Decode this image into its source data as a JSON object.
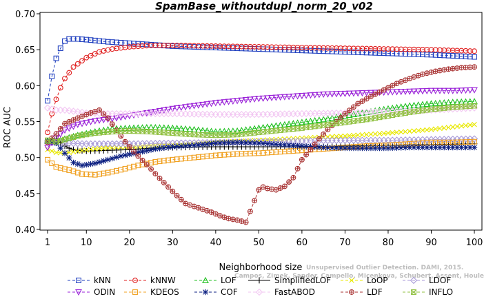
{
  "chart_data": {
    "type": "line",
    "title": "SpamBase_withoutdupl_norm_20_v02",
    "xlabel": "Neighborhood size",
    "ylabel": "ROC AUC",
    "xlim": [
      1,
      100
    ],
    "ylim": [
      0.4,
      0.7
    ],
    "xticks": [
      1,
      10,
      20,
      30,
      40,
      50,
      60,
      70,
      80,
      90,
      100
    ],
    "yticks": [
      "0.40",
      "0.45",
      "0.50",
      "0.55",
      "0.60",
      "0.65",
      "0.70"
    ],
    "legend_position": "bottom",
    "watermark": [
      "Unsupervised Outlier Detection. DAMI, 2015.",
      "Campos, Zimek, Sander, Campello, Micenkova, Schubert, Assent, Houle"
    ],
    "series": [
      {
        "name": "kNN",
        "color": "#1f3fbf",
        "marker": "square",
        "dash": true,
        "points": [
          [
            1,
            0.579
          ],
          [
            2,
            0.613
          ],
          [
            3,
            0.638
          ],
          [
            4,
            0.652
          ],
          [
            5,
            0.662
          ],
          [
            6,
            0.665
          ],
          [
            8,
            0.665
          ],
          [
            10,
            0.664
          ],
          [
            15,
            0.661
          ],
          [
            20,
            0.659
          ],
          [
            25,
            0.657
          ],
          [
            30,
            0.655
          ],
          [
            40,
            0.653
          ],
          [
            50,
            0.651
          ],
          [
            60,
            0.649
          ],
          [
            70,
            0.647
          ],
          [
            80,
            0.645
          ],
          [
            90,
            0.643
          ],
          [
            100,
            0.64
          ]
        ]
      },
      {
        "name": "kNNW",
        "color": "#e02020",
        "marker": "circle",
        "dash": true,
        "points": [
          [
            1,
            0.535
          ],
          [
            2,
            0.561
          ],
          [
            3,
            0.581
          ],
          [
            4,
            0.597
          ],
          [
            5,
            0.61
          ],
          [
            7,
            0.626
          ],
          [
            10,
            0.639
          ],
          [
            13,
            0.647
          ],
          [
            16,
            0.651
          ],
          [
            20,
            0.654
          ],
          [
            25,
            0.656
          ],
          [
            30,
            0.656
          ],
          [
            40,
            0.655
          ],
          [
            50,
            0.654
          ],
          [
            60,
            0.653
          ],
          [
            70,
            0.652
          ],
          [
            80,
            0.651
          ],
          [
            90,
            0.65
          ],
          [
            100,
            0.648
          ]
        ]
      },
      {
        "name": "LOF",
        "color": "#22c022",
        "marker": "triangle-up",
        "dash": true,
        "points": [
          [
            1,
            0.523
          ],
          [
            3,
            0.522
          ],
          [
            5,
            0.526
          ],
          [
            8,
            0.531
          ],
          [
            12,
            0.536
          ],
          [
            16,
            0.54
          ],
          [
            20,
            0.541
          ],
          [
            25,
            0.542
          ],
          [
            30,
            0.541
          ],
          [
            35,
            0.539
          ],
          [
            40,
            0.536
          ],
          [
            45,
            0.537
          ],
          [
            50,
            0.541
          ],
          [
            55,
            0.545
          ],
          [
            60,
            0.549
          ],
          [
            65,
            0.553
          ],
          [
            70,
            0.558
          ],
          [
            75,
            0.563
          ],
          [
            80,
            0.568
          ],
          [
            85,
            0.572
          ],
          [
            90,
            0.575
          ],
          [
            95,
            0.577
          ],
          [
            100,
            0.578
          ]
        ]
      },
      {
        "name": "SimplifiedLOF",
        "color": "#000000",
        "marker": "plus",
        "dash": false,
        "points": [
          [
            1,
            0.523
          ],
          [
            2,
            0.526
          ],
          [
            3,
            0.526
          ],
          [
            4,
            0.521
          ],
          [
            5,
            0.516
          ],
          [
            6,
            0.513
          ],
          [
            8,
            0.51
          ],
          [
            10,
            0.509
          ],
          [
            15,
            0.51
          ],
          [
            20,
            0.511
          ],
          [
            25,
            0.513
          ],
          [
            30,
            0.514
          ],
          [
            40,
            0.515
          ],
          [
            50,
            0.515
          ],
          [
            60,
            0.515
          ],
          [
            70,
            0.516
          ],
          [
            80,
            0.517
          ],
          [
            90,
            0.518
          ],
          [
            100,
            0.519
          ]
        ]
      },
      {
        "name": "LoOP",
        "color": "#e8e800",
        "marker": "cross",
        "dash": true,
        "points": [
          [
            1,
            0.511
          ],
          [
            3,
            0.507
          ],
          [
            5,
            0.506
          ],
          [
            8,
            0.509
          ],
          [
            12,
            0.512
          ],
          [
            16,
            0.514
          ],
          [
            20,
            0.515
          ],
          [
            30,
            0.518
          ],
          [
            40,
            0.521
          ],
          [
            50,
            0.524
          ],
          [
            60,
            0.527
          ],
          [
            70,
            0.53
          ],
          [
            80,
            0.534
          ],
          [
            90,
            0.539
          ],
          [
            100,
            0.546
          ]
        ]
      },
      {
        "name": "LDOF",
        "color": "#a89ad8",
        "marker": "diamond",
        "dash": true,
        "points": [
          [
            1,
            0.521
          ],
          [
            5,
            0.52
          ],
          [
            10,
            0.519
          ],
          [
            20,
            0.519
          ],
          [
            30,
            0.52
          ],
          [
            40,
            0.521
          ],
          [
            50,
            0.522
          ],
          [
            60,
            0.523
          ],
          [
            70,
            0.524
          ],
          [
            80,
            0.524
          ],
          [
            90,
            0.525
          ],
          [
            100,
            0.526
          ]
        ]
      },
      {
        "name": "ODIN",
        "color": "#9a22d8",
        "marker": "triangle-down",
        "dash": true,
        "points": [
          [
            1,
            0.514
          ],
          [
            3,
            0.527
          ],
          [
            5,
            0.538
          ],
          [
            8,
            0.546
          ],
          [
            12,
            0.551
          ],
          [
            16,
            0.554
          ],
          [
            20,
            0.558
          ],
          [
            25,
            0.563
          ],
          [
            30,
            0.568
          ],
          [
            35,
            0.572
          ],
          [
            40,
            0.576
          ],
          [
            45,
            0.579
          ],
          [
            50,
            0.582
          ],
          [
            55,
            0.584
          ],
          [
            60,
            0.586
          ],
          [
            65,
            0.588
          ],
          [
            70,
            0.589
          ],
          [
            75,
            0.59
          ],
          [
            80,
            0.591
          ],
          [
            85,
            0.592
          ],
          [
            90,
            0.593
          ],
          [
            95,
            0.593
          ],
          [
            100,
            0.594
          ]
        ]
      },
      {
        "name": "KDEOS",
        "color": "#f0a020",
        "marker": "square",
        "dash": true,
        "points": [
          [
            1,
            0.497
          ],
          [
            2,
            0.492
          ],
          [
            3,
            0.487
          ],
          [
            5,
            0.484
          ],
          [
            7,
            0.481
          ],
          [
            9,
            0.477
          ],
          [
            12,
            0.476
          ],
          [
            15,
            0.479
          ],
          [
            18,
            0.483
          ],
          [
            22,
            0.489
          ],
          [
            26,
            0.494
          ],
          [
            30,
            0.497
          ],
          [
            35,
            0.5
          ],
          [
            40,
            0.503
          ],
          [
            45,
            0.505
          ],
          [
            50,
            0.506
          ],
          [
            55,
            0.508
          ],
          [
            60,
            0.51
          ],
          [
            65,
            0.512
          ],
          [
            70,
            0.514
          ],
          [
            75,
            0.516
          ],
          [
            80,
            0.517
          ],
          [
            85,
            0.519
          ],
          [
            90,
            0.521
          ],
          [
            95,
            0.521
          ],
          [
            100,
            0.522
          ]
        ]
      },
      {
        "name": "COF",
        "color": "#0a1e80",
        "marker": "asterisk",
        "dash": true,
        "points": [
          [
            1,
            0.523
          ],
          [
            3,
            0.52
          ],
          [
            5,
            0.506
          ],
          [
            7,
            0.493
          ],
          [
            9,
            0.489
          ],
          [
            12,
            0.492
          ],
          [
            15,
            0.497
          ],
          [
            18,
            0.502
          ],
          [
            22,
            0.507
          ],
          [
            26,
            0.512
          ],
          [
            30,
            0.515
          ],
          [
            35,
            0.517
          ],
          [
            40,
            0.52
          ],
          [
            45,
            0.521
          ],
          [
            50,
            0.52
          ],
          [
            55,
            0.518
          ],
          [
            60,
            0.516
          ],
          [
            65,
            0.514
          ],
          [
            70,
            0.513
          ],
          [
            75,
            0.513
          ],
          [
            80,
            0.513
          ],
          [
            85,
            0.514
          ],
          [
            90,
            0.514
          ],
          [
            95,
            0.514
          ],
          [
            100,
            0.514
          ]
        ]
      },
      {
        "name": "FastABOD",
        "color": "#f2c6f2",
        "marker": "diamond",
        "dash": true,
        "points": [
          [
            1,
            0.569
          ],
          [
            3,
            0.566
          ],
          [
            5,
            0.566
          ],
          [
            10,
            0.562
          ],
          [
            15,
            0.561
          ],
          [
            20,
            0.561
          ],
          [
            25,
            0.561
          ],
          [
            30,
            0.561
          ],
          [
            40,
            0.56
          ],
          [
            50,
            0.56
          ],
          [
            60,
            0.561
          ],
          [
            70,
            0.562
          ],
          [
            80,
            0.564
          ],
          [
            90,
            0.566
          ],
          [
            100,
            0.569
          ]
        ]
      },
      {
        "name": "LDF",
        "color": "#a83232",
        "marker": "circle-dot",
        "dash": true,
        "points": [
          [
            1,
            0.521
          ],
          [
            3,
            0.533
          ],
          [
            5,
            0.547
          ],
          [
            8,
            0.555
          ],
          [
            11,
            0.562
          ],
          [
            13,
            0.566
          ],
          [
            15,
            0.555
          ],
          [
            17,
            0.538
          ],
          [
            19,
            0.522
          ],
          [
            21,
            0.508
          ],
          [
            23,
            0.496
          ],
          [
            25,
            0.484
          ],
          [
            27,
            0.471
          ],
          [
            29,
            0.459
          ],
          [
            31,
            0.447
          ],
          [
            33,
            0.436
          ],
          [
            35,
            0.432
          ],
          [
            37,
            0.428
          ],
          [
            39,
            0.424
          ],
          [
            41,
            0.419
          ],
          [
            43,
            0.415
          ],
          [
            45,
            0.413
          ],
          [
            47,
            0.41
          ],
          [
            48,
            0.425
          ],
          [
            49,
            0.44
          ],
          [
            50,
            0.455
          ],
          [
            51,
            0.459
          ],
          [
            52,
            0.457
          ],
          [
            54,
            0.455
          ],
          [
            56,
            0.46
          ],
          [
            58,
            0.472
          ],
          [
            60,
            0.497
          ],
          [
            62,
            0.511
          ],
          [
            64,
            0.526
          ],
          [
            66,
            0.539
          ],
          [
            68,
            0.55
          ],
          [
            70,
            0.561
          ],
          [
            73,
            0.575
          ],
          [
            76,
            0.585
          ],
          [
            79,
            0.594
          ],
          [
            82,
            0.603
          ],
          [
            85,
            0.61
          ],
          [
            88,
            0.616
          ],
          [
            91,
            0.62
          ],
          [
            94,
            0.623
          ],
          [
            97,
            0.625
          ],
          [
            100,
            0.626
          ]
        ]
      },
      {
        "name": "INFLO",
        "color": "#90c040",
        "marker": "square-x",
        "dash": true,
        "points": [
          [
            1,
            0.524
          ],
          [
            3,
            0.522
          ],
          [
            5,
            0.525
          ],
          [
            8,
            0.53
          ],
          [
            12,
            0.534
          ],
          [
            16,
            0.536
          ],
          [
            20,
            0.537
          ],
          [
            25,
            0.536
          ],
          [
            30,
            0.534
          ],
          [
            35,
            0.532
          ],
          [
            40,
            0.531
          ],
          [
            45,
            0.532
          ],
          [
            50,
            0.535
          ],
          [
            55,
            0.538
          ],
          [
            60,
            0.541
          ],
          [
            65,
            0.545
          ],
          [
            70,
            0.549
          ],
          [
            75,
            0.553
          ],
          [
            80,
            0.558
          ],
          [
            85,
            0.563
          ],
          [
            90,
            0.567
          ],
          [
            95,
            0.57
          ],
          [
            100,
            0.572
          ]
        ]
      }
    ]
  }
}
